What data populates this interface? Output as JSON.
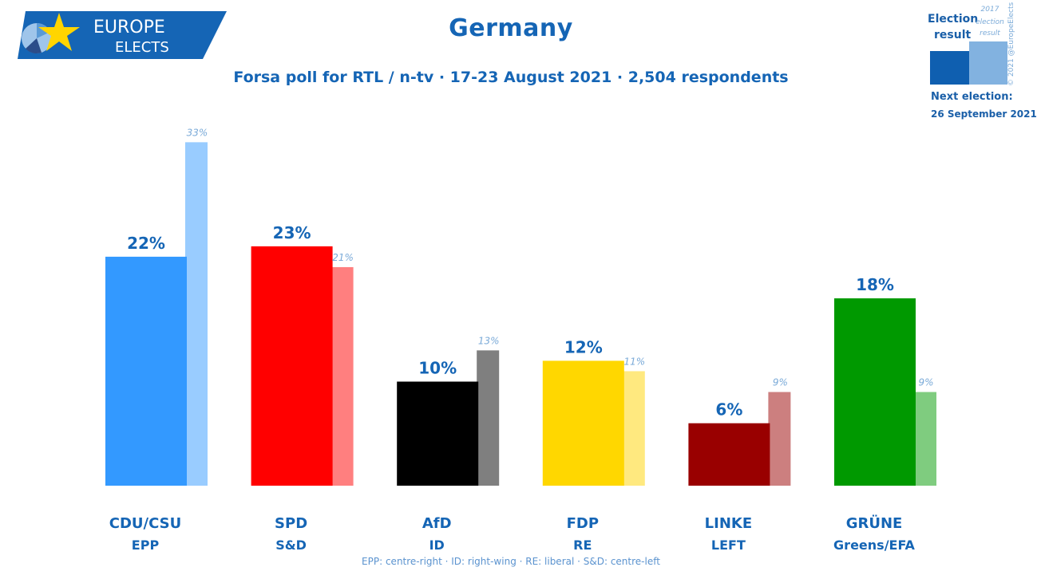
{
  "header": {
    "logo_line1": "EUROPE",
    "logo_line2": "ELECTS",
    "title": "Germany",
    "subtitle": "Forsa poll for RTL / n-tv · 17-23 August 2021 · 2,504 respondents"
  },
  "legend": {
    "current_label_1": "Election",
    "current_label_2": "result",
    "previous_label_1": "2017",
    "previous_label_2": "election",
    "previous_label_3": "result",
    "current_color": "#0f5fb0",
    "previous_color": "#82b2e0",
    "next_election_label": "Next election:",
    "next_election_date": "26 September 2021",
    "copyright": "© 2021 @EuropeElects"
  },
  "footnote": "EPP: centre-right · ID: right-wing · RE: liberal · S&D: centre-left",
  "chart_data": {
    "type": "bar",
    "title": "Germany",
    "subtitle": "Forsa poll for RTL / n-tv · 17-23 August 2021 · 2,504 respondents",
    "categories": [
      "CDU/CSU",
      "SPD",
      "AfD",
      "FDP",
      "LINKE",
      "GRÜNE"
    ],
    "groups": [
      "EPP",
      "S&D",
      "ID",
      "RE",
      "LEFT",
      "Greens/EFA"
    ],
    "series": [
      {
        "name": "Election result",
        "values": [
          22,
          23,
          10,
          12,
          6,
          18
        ],
        "labels": [
          "22%",
          "23%",
          "10%",
          "12%",
          "6%",
          "18%"
        ],
        "colors": [
          "#3399ff",
          "#ff0000",
          "#000000",
          "#ffd700",
          "#990000",
          "#009900"
        ]
      },
      {
        "name": "2017 election result",
        "values": [
          33,
          21,
          13,
          11,
          9,
          9
        ],
        "labels": [
          "33%",
          "21%",
          "13%",
          "11%",
          "9%",
          "9%"
        ],
        "colors": [
          "#99ccff",
          "#ff7f7f",
          "#7f7f7f",
          "#ffe97f",
          "#cc7f7f",
          "#7fcc7f"
        ]
      }
    ],
    "ylim": [
      0,
      35
    ],
    "grid": false,
    "legend_position": "top-right"
  }
}
